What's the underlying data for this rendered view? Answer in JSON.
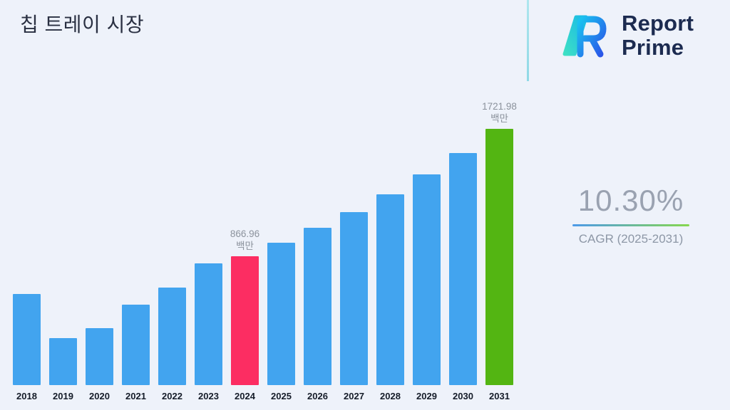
{
  "header": {
    "title": "칩 트레이 시장"
  },
  "logo": {
    "line1": "Report",
    "line2": "Prime"
  },
  "stats": {
    "cagr_value": "10.30%",
    "cagr_label": "CAGR (2025-2031)"
  },
  "chart_data": {
    "type": "bar",
    "title": "칩 트레이 시장",
    "categories": [
      "2018",
      "2019",
      "2020",
      "2021",
      "2022",
      "2023",
      "2024",
      "2025",
      "2026",
      "2027",
      "2028",
      "2029",
      "2030",
      "2031"
    ],
    "values": [
      610,
      315,
      385,
      540,
      655,
      820,
      866.96,
      956.26,
      1054.75,
      1163.39,
      1283.22,
      1415.39,
      1561.18,
      1721.98
    ],
    "unit": "백만",
    "ylim": [
      0,
      1800
    ],
    "grid": false,
    "legend": "none",
    "bar_color": "#42a4ef",
    "highlights": {
      "2024": "#fc2d62",
      "2031": "#53b512"
    },
    "annotations": [
      {
        "category": "2024",
        "value": "866.96",
        "unit": "백만"
      },
      {
        "category": "2031",
        "value": "1721.98",
        "unit": "백만"
      }
    ]
  }
}
